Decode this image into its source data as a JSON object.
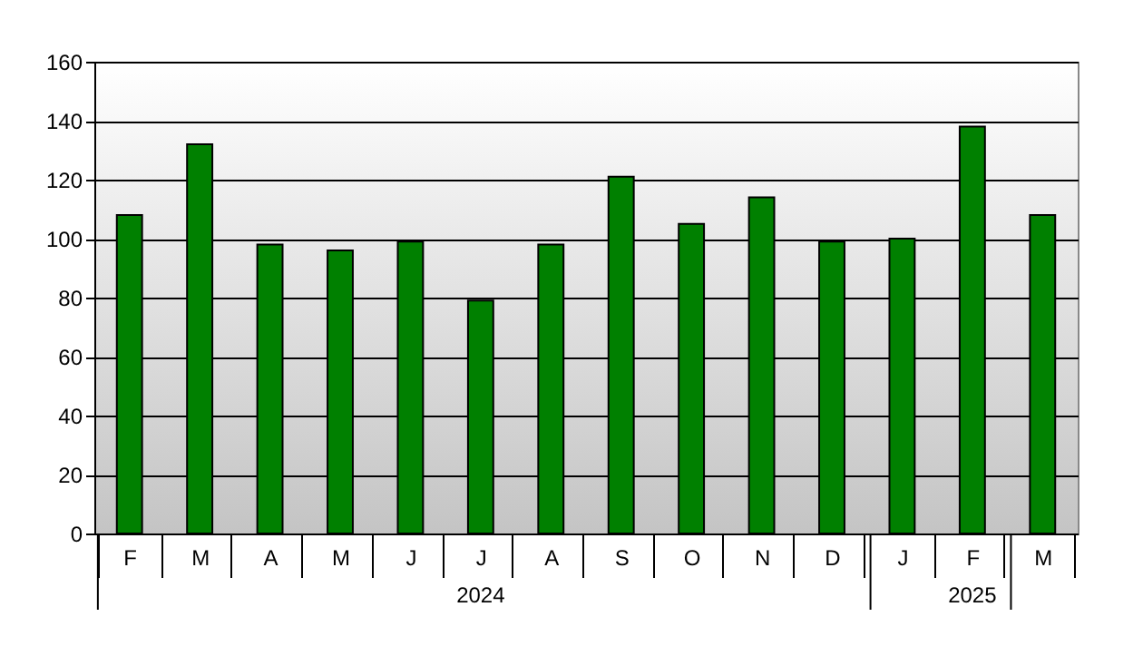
{
  "chart_data": {
    "type": "bar",
    "categories": [
      "F",
      "M",
      "A",
      "M",
      "J",
      "J",
      "A",
      "S",
      "O",
      "N",
      "D",
      "J",
      "F",
      "M"
    ],
    "values": [
      108,
      132,
      98,
      96,
      99,
      79,
      98,
      121,
      105,
      114,
      99,
      100,
      138,
      108
    ],
    "color": "#008000",
    "ylim": [
      0,
      160
    ],
    "yticks": [
      0,
      20,
      40,
      60,
      80,
      100,
      120,
      140,
      160
    ],
    "grid": "y",
    "annotations": [
      "2024",
      "2025"
    ]
  }
}
